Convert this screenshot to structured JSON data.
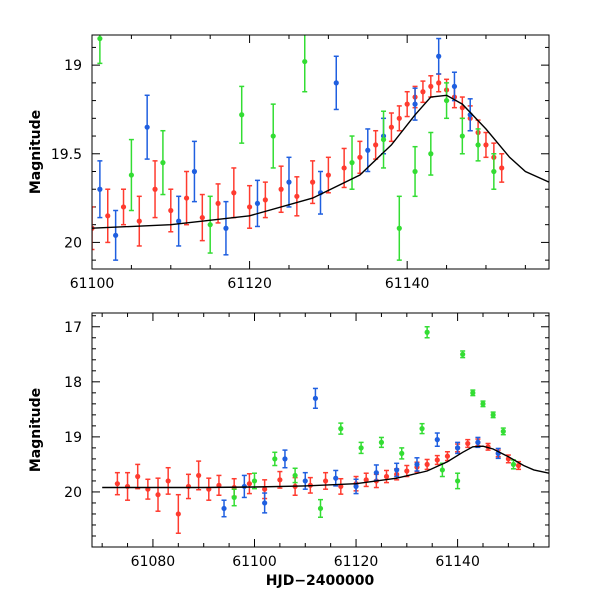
{
  "chart_data": [
    {
      "type": "scatter",
      "panel": "top",
      "ylabel": "Magnitude",
      "xlabel": "",
      "xlim": [
        61100,
        61158
      ],
      "ylim": [
        20.15,
        18.83
      ],
      "y_inverted": true,
      "xticks": [
        61100,
        61120,
        61140
      ],
      "yticks": [
        19,
        19.5,
        20
      ],
      "xtick_labels": [
        "61100",
        "61120",
        "61140"
      ],
      "ytick_labels": [
        "19",
        "19.5",
        "20"
      ],
      "model_curve": {
        "name": "fit",
        "color": "#000000",
        "x": [
          61100,
          61110,
          61120,
          61128,
          61134,
          61138,
          61141,
          61143,
          61145,
          61147,
          61150,
          61153,
          61155,
          61158
        ],
        "y": [
          19.92,
          19.9,
          19.85,
          19.75,
          19.62,
          19.45,
          19.28,
          19.18,
          19.17,
          19.22,
          19.36,
          19.52,
          19.6,
          19.66
        ]
      },
      "series": [
        {
          "name": "red",
          "color": "#ff3b2f",
          "x": [
            61100,
            61102,
            61104,
            61106,
            61108,
            61110,
            61112,
            61114,
            61116,
            61118,
            61120,
            61122,
            61124,
            61126,
            61128,
            61130,
            61132,
            61134,
            61136,
            61138,
            61139,
            61140,
            61141,
            61142,
            61143,
            61144,
            61145,
            61146,
            61147,
            61148,
            61149,
            61150,
            61151,
            61152
          ],
          "y": [
            19.92,
            19.85,
            19.8,
            19.88,
            19.7,
            19.82,
            19.75,
            19.86,
            19.78,
            19.72,
            19.8,
            19.76,
            19.7,
            19.74,
            19.66,
            19.62,
            19.58,
            19.52,
            19.45,
            19.35,
            19.3,
            19.22,
            19.18,
            19.15,
            19.12,
            19.1,
            19.14,
            19.18,
            19.24,
            19.3,
            19.38,
            19.45,
            19.52,
            19.58
          ],
          "err": [
            0.12,
            0.15,
            0.1,
            0.14,
            0.16,
            0.12,
            0.15,
            0.13,
            0.11,
            0.14,
            0.12,
            0.1,
            0.13,
            0.11,
            0.12,
            0.1,
            0.11,
            0.09,
            0.08,
            0.08,
            0.07,
            0.07,
            0.06,
            0.06,
            0.06,
            0.05,
            0.06,
            0.06,
            0.06,
            0.07,
            0.07,
            0.07,
            0.08,
            0.08
          ]
        },
        {
          "name": "blue",
          "color": "#1f5fe0",
          "x": [
            61101,
            61103,
            61107,
            61111,
            61113,
            61117,
            61121,
            61125,
            61129,
            61131,
            61135,
            61137,
            61141,
            61144,
            61146,
            61148
          ],
          "y": [
            19.7,
            19.96,
            19.35,
            19.88,
            19.6,
            19.92,
            19.78,
            19.66,
            19.72,
            19.1,
            19.48,
            19.4,
            19.22,
            18.95,
            19.12,
            19.28
          ],
          "err": [
            0.16,
            0.14,
            0.18,
            0.14,
            0.17,
            0.15,
            0.13,
            0.14,
            0.12,
            0.15,
            0.12,
            0.1,
            0.09,
            0.1,
            0.08,
            0.09
          ]
        },
        {
          "name": "green",
          "color": "#33dd33",
          "x": [
            61101,
            61105,
            61109,
            61115,
            61119,
            61123,
            61127,
            61133,
            61137,
            61139,
            61141,
            61143,
            61145,
            61147,
            61149,
            61151
          ],
          "y": [
            18.85,
            19.62,
            19.55,
            19.9,
            19.28,
            19.4,
            18.98,
            19.55,
            19.42,
            19.92,
            19.6,
            19.5,
            19.2,
            19.4,
            19.45,
            19.6
          ],
          "err": [
            0.14,
            0.2,
            0.18,
            0.16,
            0.16,
            0.18,
            0.17,
            0.15,
            0.16,
            0.18,
            0.14,
            0.12,
            0.1,
            0.1,
            0.09,
            0.1
          ]
        }
      ]
    },
    {
      "type": "scatter",
      "panel": "bottom",
      "ylabel": "Magnitude",
      "xlabel": "HJD−2400000",
      "xlim": [
        61068,
        61158
      ],
      "ylim": [
        21.0,
        16.75
      ],
      "y_inverted": true,
      "xticks": [
        61080,
        61100,
        61120,
        61140
      ],
      "yticks": [
        17,
        18,
        19,
        20
      ],
      "xtick_labels": [
        "61080",
        "61100",
        "61120",
        "61140"
      ],
      "ytick_labels": [
        "17",
        "18",
        "19",
        "20"
      ],
      "model_curve": {
        "name": "fit",
        "color": "#000000",
        "x": [
          61070,
          61090,
          61100,
          61110,
          61120,
          61128,
          61134,
          61138,
          61141,
          61143,
          61145,
          61147,
          61150,
          61153,
          61155,
          61158
        ],
        "y": [
          19.92,
          19.92,
          19.91,
          19.89,
          19.85,
          19.75,
          19.62,
          19.45,
          19.28,
          19.18,
          19.17,
          19.22,
          19.36,
          19.52,
          19.6,
          19.66
        ]
      },
      "series": [
        {
          "name": "red",
          "color": "#ff3b2f",
          "x": [
            61073,
            61075,
            61077,
            61079,
            61081,
            61083,
            61085,
            61087,
            61089,
            61091,
            61093,
            61096,
            61099,
            61102,
            61105,
            61108,
            61111,
            61114,
            61117,
            61120,
            61122,
            61124,
            61126,
            61128,
            61130,
            61132,
            61134,
            61136,
            61138,
            61140,
            61142,
            61144,
            61146,
            61148,
            61150,
            61152
          ],
          "y": [
            19.85,
            19.9,
            19.72,
            19.95,
            20.05,
            19.8,
            20.4,
            19.9,
            19.7,
            19.95,
            19.88,
            19.92,
            19.85,
            19.95,
            19.78,
            19.9,
            19.88,
            19.8,
            19.9,
            19.85,
            19.78,
            19.8,
            19.72,
            19.68,
            19.62,
            19.55,
            19.5,
            19.42,
            19.35,
            19.2,
            19.12,
            19.1,
            19.18,
            19.3,
            19.4,
            19.52
          ],
          "err": [
            0.2,
            0.25,
            0.22,
            0.18,
            0.3,
            0.24,
            0.35,
            0.22,
            0.26,
            0.2,
            0.18,
            0.16,
            0.18,
            0.17,
            0.15,
            0.16,
            0.14,
            0.15,
            0.14,
            0.13,
            0.12,
            0.12,
            0.11,
            0.1,
            0.1,
            0.09,
            0.09,
            0.08,
            0.08,
            0.07,
            0.07,
            0.06,
            0.06,
            0.06,
            0.07,
            0.07
          ]
        },
        {
          "name": "blue",
          "color": "#1f5fe0",
          "x": [
            61094,
            61098,
            61102,
            61106,
            61110,
            61112,
            61116,
            61120,
            61124,
            61128,
            61132,
            61136,
            61140,
            61144,
            61148
          ],
          "y": [
            20.3,
            19.9,
            20.2,
            19.4,
            19.8,
            18.3,
            19.75,
            19.9,
            19.65,
            19.6,
            19.5,
            19.05,
            19.2,
            19.1,
            19.3
          ],
          "err": [
            0.15,
            0.2,
            0.18,
            0.16,
            0.15,
            0.18,
            0.14,
            0.13,
            0.14,
            0.12,
            0.12,
            0.12,
            0.1,
            0.09,
            0.09
          ]
        },
        {
          "name": "green",
          "color": "#33dd33",
          "x": [
            61096,
            61100,
            61104,
            61108,
            61113,
            61117,
            61121,
            61125,
            61129,
            61133,
            61134,
            61137,
            61140,
            61141,
            61143,
            61145,
            61147,
            61149,
            61151
          ],
          "y": [
            20.1,
            19.8,
            19.4,
            19.7,
            20.3,
            18.85,
            19.2,
            19.1,
            19.3,
            18.85,
            17.1,
            19.6,
            19.8,
            17.5,
            18.2,
            18.4,
            18.6,
            18.9,
            19.5
          ],
          "err": [
            0.15,
            0.14,
            0.12,
            0.13,
            0.16,
            0.1,
            0.1,
            0.09,
            0.1,
            0.09,
            0.1,
            0.12,
            0.14,
            0.06,
            0.05,
            0.05,
            0.05,
            0.06,
            0.08
          ]
        }
      ]
    }
  ]
}
